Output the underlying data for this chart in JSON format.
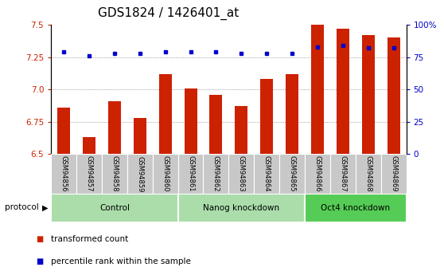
{
  "title": "GDS1824 / 1426401_at",
  "samples": [
    "GSM94856",
    "GSM94857",
    "GSM94858",
    "GSM94859",
    "GSM94860",
    "GSM94861",
    "GSM94862",
    "GSM94863",
    "GSM94864",
    "GSM94865",
    "GSM94866",
    "GSM94867",
    "GSM94868",
    "GSM94869"
  ],
  "red_values": [
    6.86,
    6.63,
    6.91,
    6.78,
    7.12,
    7.01,
    6.96,
    6.87,
    7.08,
    7.12,
    7.5,
    7.47,
    7.42,
    7.4
  ],
  "blue_values": [
    79,
    76,
    78,
    78,
    79,
    79,
    79,
    78,
    78,
    78,
    83,
    84,
    82,
    82
  ],
  "ylim_left": [
    6.5,
    7.5
  ],
  "ylim_right": [
    0,
    100
  ],
  "yticks_left": [
    6.5,
    6.75,
    7.0,
    7.25,
    7.5
  ],
  "yticks_right": [
    0,
    25,
    50,
    75,
    100
  ],
  "ytick_labels_right": [
    "0",
    "25",
    "50",
    "75",
    "100%"
  ],
  "bar_color": "#cc2200",
  "dot_color": "#0000cc",
  "bar_bottom": 6.5,
  "group_data": [
    {
      "label": "Control",
      "start": 0,
      "end": 5,
      "color": "#aaddaa"
    },
    {
      "label": "Nanog knockdown",
      "start": 5,
      "end": 10,
      "color": "#aaddaa"
    },
    {
      "label": "Oct4 knockdown",
      "start": 10,
      "end": 14,
      "color": "#55cc55"
    }
  ],
  "legend_red": "transformed count",
  "legend_blue": "percentile rank within the sample",
  "title_fontsize": 11,
  "tick_fontsize": 7.5
}
